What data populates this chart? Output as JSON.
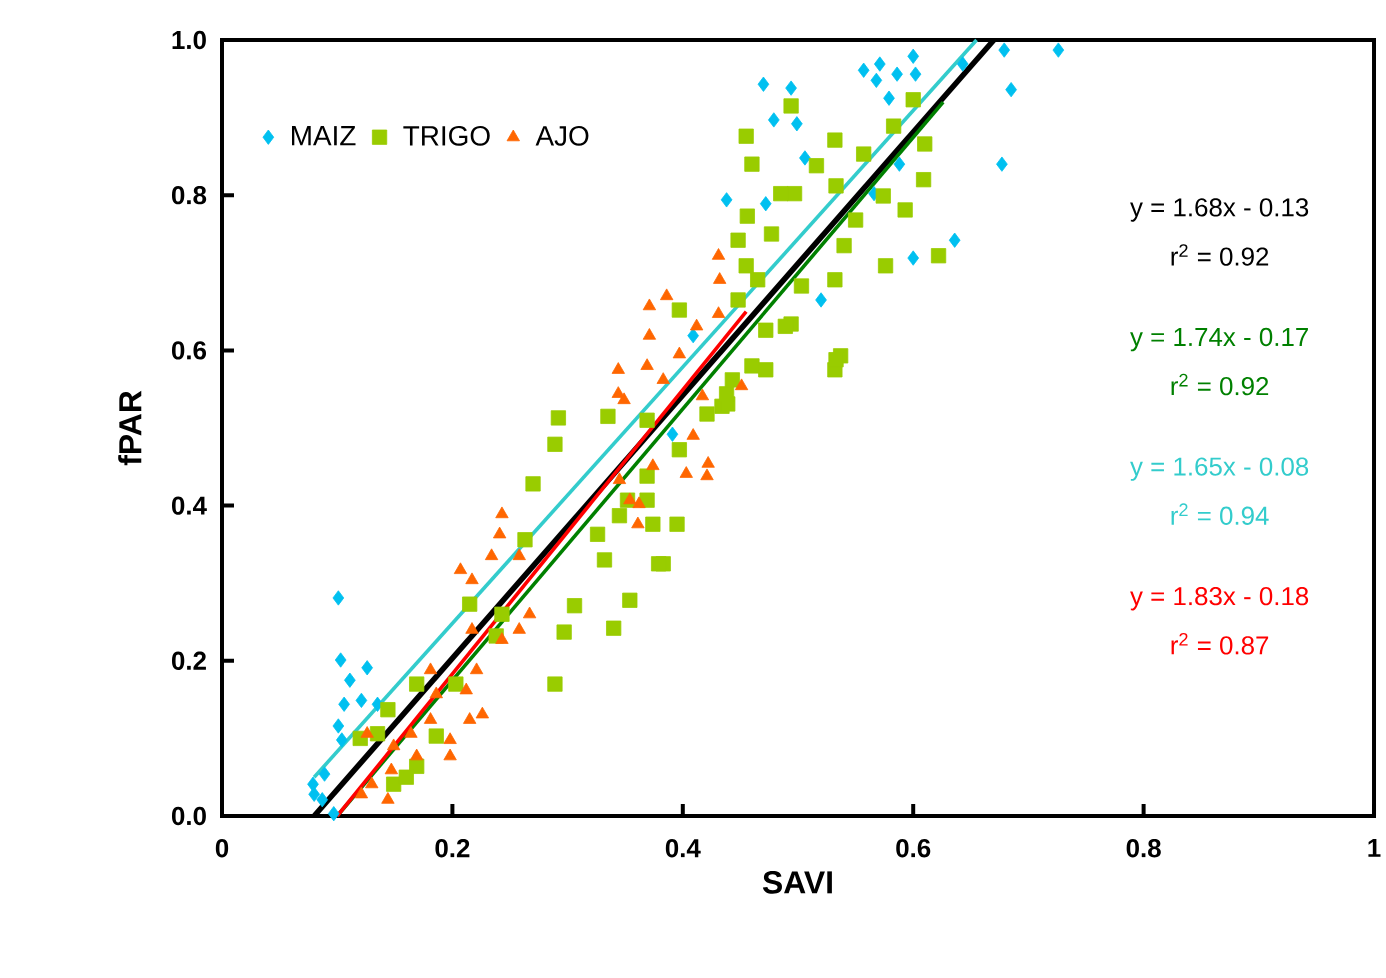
{
  "chart_data": {
    "type": "scatter",
    "xlabel": "SAVI",
    "ylabel": "fPAR",
    "xlim": [
      0,
      1
    ],
    "ylim": [
      0,
      1
    ],
    "xticks": [
      0,
      0.2,
      0.4,
      0.6,
      0.8,
      1
    ],
    "yticks": [
      {
        "value": 0,
        "label": "0.0"
      },
      0.2,
      0.4,
      0.6,
      0.8,
      {
        "value": 1,
        "label": "1.0"
      }
    ],
    "legend": "top left",
    "series": [
      {
        "name": "MAIZ",
        "marker": "diamond",
        "color": "#00c0f0",
        "x": [
          0.101,
          0.103,
          0.111,
          0.126,
          0.106,
          0.121,
          0.101,
          0.135,
          0.104,
          0.089,
          0.08,
          0.087,
          0.097,
          0.079,
          0.47,
          0.494,
          0.479,
          0.499,
          0.557,
          0.571,
          0.568,
          0.586,
          0.6,
          0.602,
          0.579,
          0.643,
          0.679,
          0.726,
          0.685,
          0.506,
          0.588,
          0.472,
          0.677,
          0.636,
          0.6,
          0.52,
          0.566,
          0.438,
          0.409,
          0.391
        ],
        "values": [
          0.281,
          0.201,
          0.175,
          0.191,
          0.144,
          0.149,
          0.116,
          0.144,
          0.098,
          0.054,
          0.028,
          0.021,
          0.003,
          0.041,
          0.943,
          0.938,
          0.897,
          0.892,
          0.961,
          0.969,
          0.948,
          0.956,
          0.979,
          0.956,
          0.925,
          0.969,
          0.987,
          0.987,
          0.936,
          0.848,
          0.84,
          0.789,
          0.84,
          0.742,
          0.719,
          0.665,
          0.802,
          0.794,
          0.619,
          0.492
        ]
      },
      {
        "name": "TRIGO",
        "marker": "square",
        "color": "#99cc00",
        "x": [
          0.292,
          0.289,
          0.27,
          0.335,
          0.369,
          0.374,
          0.395,
          0.383,
          0.332,
          0.354,
          0.306,
          0.297,
          0.34,
          0.289,
          0.263,
          0.215,
          0.238,
          0.203,
          0.169,
          0.144,
          0.135,
          0.169,
          0.149,
          0.186,
          0.243,
          0.326,
          0.434,
          0.421,
          0.397,
          0.352,
          0.397,
          0.46,
          0.494,
          0.537,
          0.532,
          0.439,
          0.369,
          0.369,
          0.345,
          0.379,
          0.472,
          0.443,
          0.494,
          0.532,
          0.557,
          0.583,
          0.61,
          0.6,
          0.516,
          0.497,
          0.533,
          0.574,
          0.593,
          0.55,
          0.54,
          0.477,
          0.465,
          0.503,
          0.489,
          0.533,
          0.576,
          0.622,
          0.609,
          0.532,
          0.472,
          0.455,
          0.46,
          0.485,
          0.456,
          0.448,
          0.455,
          0.448,
          0.438,
          0.12,
          0.16
        ],
        "values": [
          0.513,
          0.479,
          0.428,
          0.515,
          0.51,
          0.376,
          0.376,
          0.325,
          0.33,
          0.278,
          0.271,
          0.237,
          0.242,
          0.17,
          0.356,
          0.273,
          0.232,
          0.17,
          0.17,
          0.137,
          0.106,
          0.064,
          0.041,
          0.103,
          0.26,
          0.363,
          0.528,
          0.518,
          0.472,
          0.407,
          0.652,
          0.58,
          0.634,
          0.593,
          0.575,
          0.531,
          0.438,
          0.407,
          0.387,
          0.325,
          0.626,
          0.562,
          0.915,
          0.871,
          0.853,
          0.889,
          0.866,
          0.923,
          0.838,
          0.802,
          0.812,
          0.799,
          0.781,
          0.768,
          0.735,
          0.75,
          0.691,
          0.683,
          0.631,
          0.588,
          0.709,
          0.722,
          0.82,
          0.691,
          0.575,
          0.876,
          0.84,
          0.802,
          0.773,
          0.742,
          0.709,
          0.665,
          0.544,
          0.1,
          0.05
        ]
      },
      {
        "name": "AJO",
        "marker": "triangle",
        "color": "#ff6600",
        "x": [
          0.243,
          0.241,
          0.234,
          0.258,
          0.207,
          0.217,
          0.267,
          0.217,
          0.258,
          0.243,
          0.181,
          0.221,
          0.212,
          0.186,
          0.226,
          0.215,
          0.181,
          0.198,
          0.198,
          0.164,
          0.169,
          0.149,
          0.126,
          0.147,
          0.13,
          0.121,
          0.144,
          0.403,
          0.362,
          0.361,
          0.374,
          0.409,
          0.422,
          0.349,
          0.371,
          0.412,
          0.431,
          0.371,
          0.397,
          0.344,
          0.369,
          0.383,
          0.344,
          0.417,
          0.451,
          0.421,
          0.354,
          0.345,
          0.386,
          0.431,
          0.432
        ],
        "values": [
          0.389,
          0.363,
          0.335,
          0.335,
          0.317,
          0.304,
          0.26,
          0.24,
          0.24,
          0.227,
          0.188,
          0.188,
          0.162,
          0.157,
          0.131,
          0.124,
          0.124,
          0.098,
          0.077,
          0.106,
          0.077,
          0.09,
          0.106,
          0.059,
          0.041,
          0.028,
          0.021,
          0.441,
          0.402,
          0.376,
          0.451,
          0.49,
          0.454,
          0.536,
          0.657,
          0.631,
          0.647,
          0.619,
          0.595,
          0.575,
          0.58,
          0.562,
          0.544,
          0.541,
          0.554,
          0.438,
          0.407,
          0.433,
          0.67,
          0.722,
          0.691
        ]
      },
      {
        "type": "line",
        "color": "#000000",
        "x": [
          0.08,
          0.67
        ],
        "values": [
          0.0,
          1.0
        ]
      },
      {
        "type": "line",
        "color": "#008000",
        "x": [
          0.1,
          0.626
        ],
        "values": [
          0.0,
          0.92
        ]
      },
      {
        "type": "line",
        "color": "#33cccc",
        "x": [
          0.08,
          0.655
        ],
        "values": [
          0.05,
          1.0
        ]
      },
      {
        "type": "line",
        "color": "#ff0000",
        "x": [
          0.1,
          0.455
        ],
        "values": [
          0.0,
          0.65
        ]
      }
    ],
    "annotations": [
      "y = 1.68x - 0.13",
      "r$^{2}$ = 0.92",
      "y = 1.74x - 0.17",
      "r$^{2}$ = 0.92",
      "y = 1.65x - 0.08",
      "r$^{2}$ = 0.94",
      "y = 1.83x - 0.18",
      "r$^{2}$ = 0.87"
    ]
  }
}
